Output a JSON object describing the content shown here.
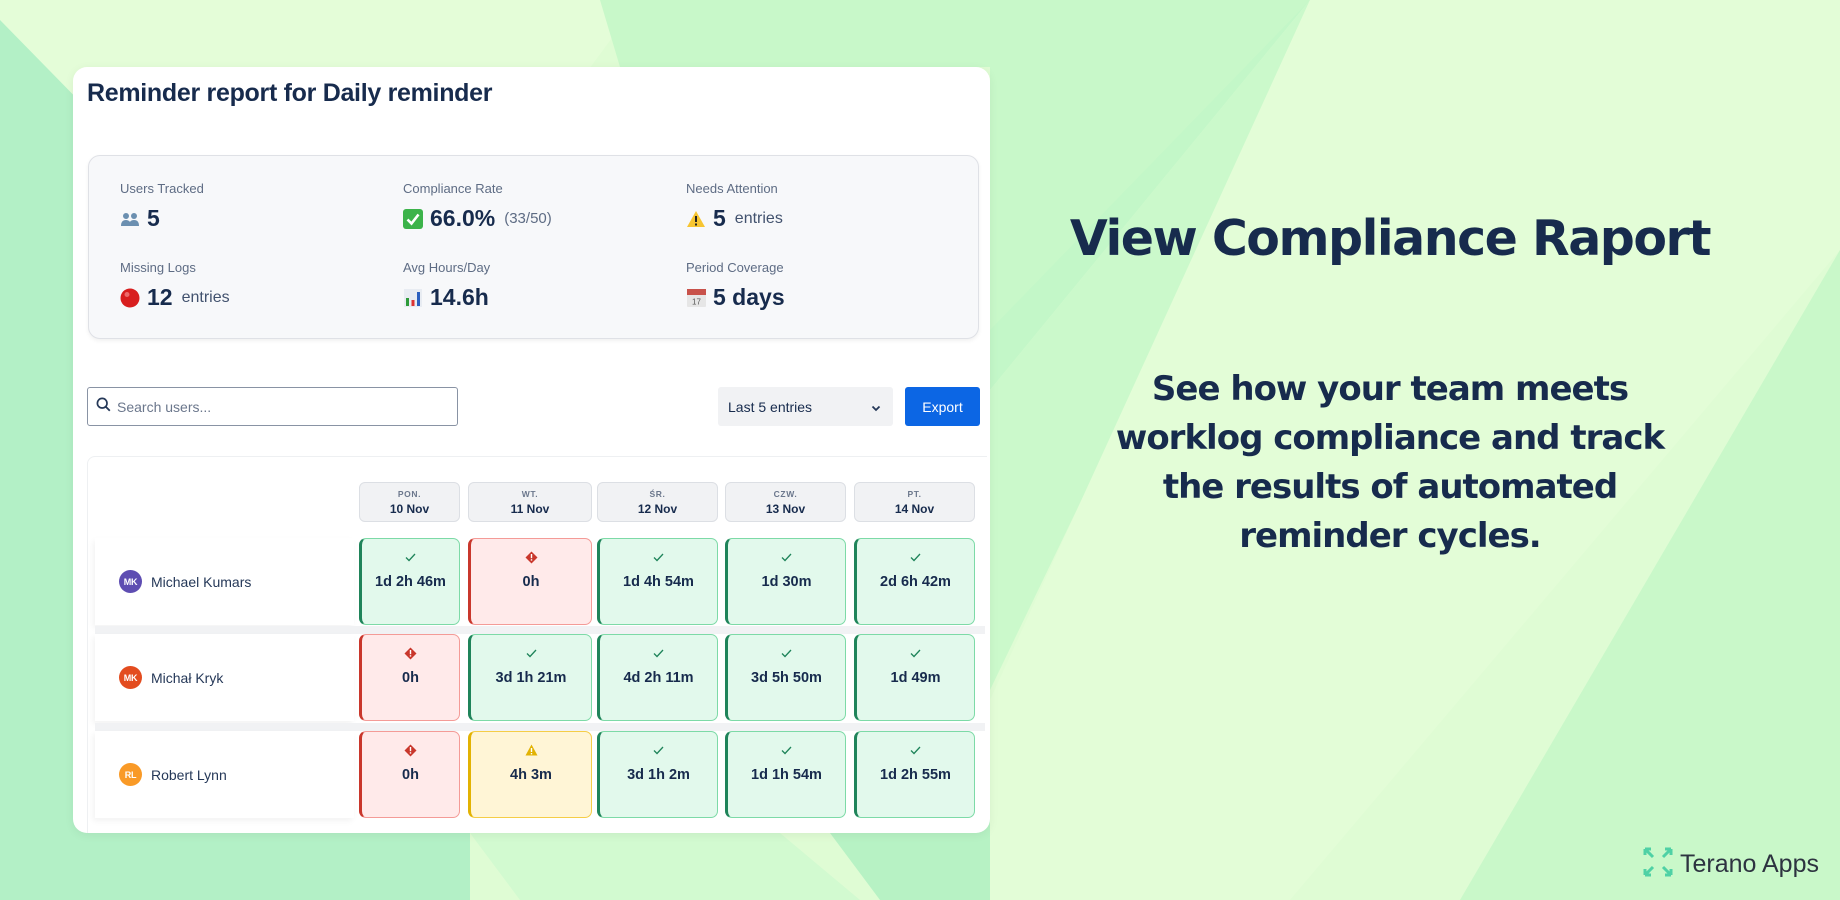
{
  "panel": {
    "title": "Reminder report for Daily reminder",
    "stats": [
      {
        "label": "Users Tracked",
        "icon": "users-icon",
        "value": "5",
        "suffix": ""
      },
      {
        "label": "Compliance Rate",
        "icon": "check-box-icon",
        "value": "66.0%",
        "suffix": "(33/50)"
      },
      {
        "label": "Needs Attention",
        "icon": "warning-icon",
        "value": "5",
        "suffix": "entries"
      },
      {
        "label": "Missing Logs",
        "icon": "red-circle-icon",
        "value": "12",
        "suffix": "entries"
      },
      {
        "label": "Avg Hours/Day",
        "icon": "bar-chart-icon",
        "value": "14.6h",
        "suffix": ""
      },
      {
        "label": "Period Coverage",
        "icon": "calendar-icon",
        "value": "5 days",
        "suffix": ""
      }
    ],
    "search": {
      "placeholder": "Search users...",
      "value": ""
    },
    "range_select": {
      "selected": "Last 5 entries"
    },
    "export_label": "Export",
    "days": [
      {
        "dow": "PON.",
        "date": "10 Nov"
      },
      {
        "dow": "WT.",
        "date": "11 Nov"
      },
      {
        "dow": "ŚR.",
        "date": "12 Nov"
      },
      {
        "dow": "CZW.",
        "date": "13 Nov"
      },
      {
        "dow": "PT.",
        "date": "14 Nov"
      }
    ],
    "users": [
      {
        "initials": "MK",
        "name": "Michael Kumars",
        "avatar_color": "#5e4db2",
        "cells": [
          {
            "status": "ok",
            "value": "1d 2h 46m"
          },
          {
            "status": "bad",
            "value": "0h"
          },
          {
            "status": "ok",
            "value": "1d 4h 54m"
          },
          {
            "status": "ok",
            "value": "1d 30m"
          },
          {
            "status": "ok",
            "value": "2d 6h 42m"
          }
        ]
      },
      {
        "initials": "MK",
        "name": "Michał Kryk",
        "avatar_color": "#e34c1f",
        "cells": [
          {
            "status": "bad",
            "value": "0h"
          },
          {
            "status": "ok",
            "value": "3d 1h 21m"
          },
          {
            "status": "ok",
            "value": "4d 2h 11m"
          },
          {
            "status": "ok",
            "value": "3d 5h 50m"
          },
          {
            "status": "ok",
            "value": "1d 49m"
          }
        ]
      },
      {
        "initials": "RL",
        "name": "Robert Lynn",
        "avatar_color": "#f99a27",
        "cells": [
          {
            "status": "bad",
            "value": "0h"
          },
          {
            "status": "warn",
            "value": "4h 3m"
          },
          {
            "status": "ok",
            "value": "3d 1h 2m"
          },
          {
            "status": "ok",
            "value": "1d 1h 54m"
          },
          {
            "status": "ok",
            "value": "1d 2h 55m"
          }
        ]
      }
    ]
  },
  "hero": {
    "title": "View Compliance Raport",
    "subtitle_lines": [
      "See how your team meets",
      "worklog compliance and track",
      "the results of automated",
      "reminder cycles."
    ]
  },
  "brand": {
    "name": "Terano Apps",
    "color": "#4fd1a5"
  },
  "colors": {
    "accent": "#0c66e4",
    "ok": "#1f845a",
    "bad": "#c9372c",
    "warn": "#e2b203",
    "text": "#172b4d"
  }
}
